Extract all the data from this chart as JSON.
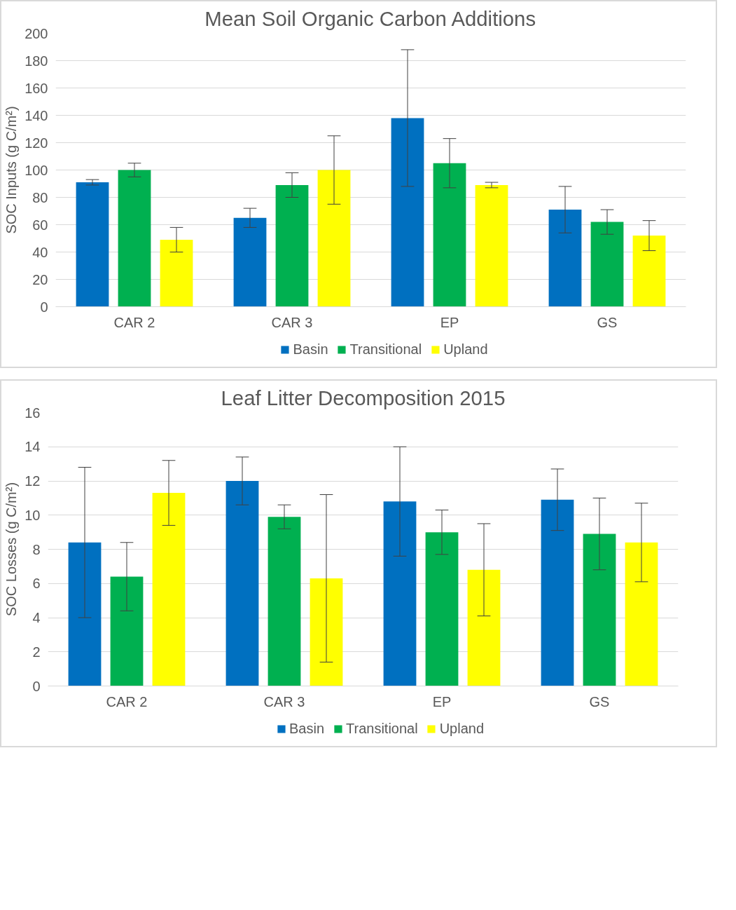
{
  "chart_data": [
    {
      "type": "bar",
      "title": "Mean Soil Organic Carbon Additions",
      "ylabel": "SOC Inputs (g C/m²)",
      "categories": [
        "CAR 2",
        "CAR 3",
        "EP",
        "GS"
      ],
      "ylim": [
        0,
        200
      ],
      "yticks": [
        0,
        20,
        40,
        60,
        80,
        100,
        120,
        140,
        160,
        180,
        200
      ],
      "grid": "y",
      "legend": "bottom",
      "series": [
        {
          "name": "Basin",
          "color": "#0070c0",
          "values": [
            91,
            65,
            138,
            71
          ],
          "errors": [
            2,
            7,
            50,
            17
          ]
        },
        {
          "name": "Transitional",
          "color": "#00b050",
          "values": [
            100,
            89,
            105,
            62
          ],
          "errors": [
            5,
            9,
            18,
            9
          ]
        },
        {
          "name": "Upland",
          "color": "#ffff00",
          "values": [
            49,
            100,
            89,
            52
          ],
          "errors": [
            9,
            25,
            2,
            11
          ]
        }
      ]
    },
    {
      "type": "bar",
      "title": "Leaf Litter Decomposition 2015",
      "ylabel": "SOC Losses (g C/m²)",
      "categories": [
        "CAR 2",
        "CAR 3",
        "EP",
        "GS"
      ],
      "ylim": [
        0,
        16
      ],
      "yticks": [
        0,
        2,
        4,
        6,
        8,
        10,
        12,
        14,
        16
      ],
      "grid": "y",
      "legend": "bottom",
      "series": [
        {
          "name": "Basin",
          "color": "#0070c0",
          "values": [
            8.4,
            12.0,
            10.8,
            10.9
          ],
          "errors": [
            4.4,
            1.4,
            3.2,
            1.8
          ]
        },
        {
          "name": "Transitional",
          "color": "#00b050",
          "values": [
            6.4,
            9.9,
            9.0,
            8.9
          ],
          "errors": [
            2.0,
            0.7,
            1.3,
            2.1
          ]
        },
        {
          "name": "Upland",
          "color": "#ffff00",
          "values": [
            11.3,
            6.3,
            6.8,
            8.4
          ],
          "errors": [
            1.9,
            4.9,
            2.7,
            2.3
          ]
        }
      ]
    }
  ]
}
